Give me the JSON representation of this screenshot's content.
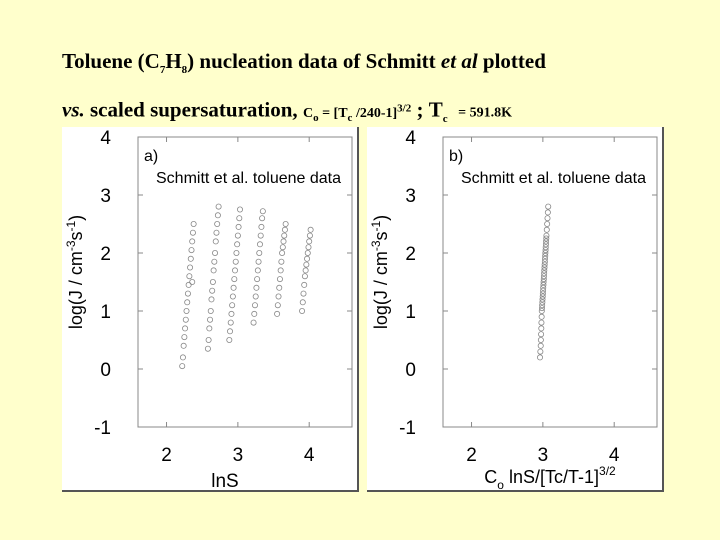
{
  "title": {
    "line1_prefix": "Toluene (C",
    "line1_sub1": "7",
    "line1_mid": "H",
    "line1_sub2": "8",
    "line1_after": ") nucleation data of Schmitt",
    "line1_italic": "et al",
    "line1_suffix": "plotted",
    "line2_italic": "vs.",
    "line2_main": "scaled supersaturation,",
    "c0": "C",
    "c0_sub": "o",
    "c0_eq": "= [T",
    "c0_tc_sub": "c",
    "c0_rest": "/240-1]",
    "c0_exp": "3/2",
    "sep": ";",
    "tc": "T",
    "tc_sub": "c",
    "tc_val": "= 591.8K"
  },
  "chart_data": [
    {
      "type": "scatter",
      "panel_label": "a)",
      "title": "Schmitt et al. toluene data",
      "xlabel": "lnS",
      "ylabel_main": "log(J / cm",
      "ylabel_sup1": "-3",
      "ylabel_mid": "s",
      "ylabel_sup2": "-1",
      "ylabel_end": ")",
      "xlim": [
        1.6,
        4.6
      ],
      "ylim": [
        -1,
        4
      ],
      "xticks": [
        "2",
        "3",
        "4"
      ],
      "xtick_values": [
        2,
        3,
        4
      ],
      "yticks": [
        "-1",
        "0",
        "1",
        "2",
        "3",
        "4"
      ],
      "ytick_values": [
        -1,
        0,
        1,
        2,
        3,
        4
      ],
      "marker": "open-circle",
      "color": "#888888",
      "series": [
        {
          "x": [
            2.22,
            2.23,
            2.24,
            2.25,
            2.26,
            2.27,
            2.28,
            2.29,
            2.3,
            2.31,
            2.32,
            2.33,
            2.34,
            2.35,
            2.36,
            2.36,
            2.37,
            2.38
          ],
          "y": [
            0.05,
            0.2,
            0.4,
            0.55,
            0.7,
            0.85,
            1.0,
            1.15,
            1.3,
            1.45,
            1.6,
            1.75,
            1.9,
            2.05,
            2.2,
            1.5,
            2.35,
            2.5
          ]
        },
        {
          "x": [
            2.58,
            2.59,
            2.6,
            2.61,
            2.62,
            2.63,
            2.64,
            2.65,
            2.66,
            2.67,
            2.68,
            2.69,
            2.7,
            2.71,
            2.72,
            2.73
          ],
          "y": [
            0.35,
            0.5,
            0.7,
            0.85,
            1.0,
            1.2,
            1.35,
            1.5,
            1.7,
            1.85,
            2.0,
            2.2,
            2.35,
            2.5,
            2.65,
            2.8
          ]
        },
        {
          "x": [
            2.88,
            2.89,
            2.9,
            2.91,
            2.92,
            2.93,
            2.94,
            2.95,
            2.96,
            2.97,
            2.98,
            2.99,
            3.0,
            3.01,
            3.02,
            3.03
          ],
          "y": [
            0.5,
            0.65,
            0.8,
            0.95,
            1.1,
            1.25,
            1.4,
            1.55,
            1.7,
            1.85,
            2.0,
            2.15,
            2.3,
            2.45,
            2.6,
            2.75
          ]
        },
        {
          "x": [
            3.22,
            3.23,
            3.24,
            3.25,
            3.26,
            3.27,
            3.28,
            3.29,
            3.3,
            3.31,
            3.32,
            3.33,
            3.34,
            3.35
          ],
          "y": [
            0.8,
            0.95,
            1.1,
            1.25,
            1.4,
            1.55,
            1.7,
            1.85,
            2.0,
            2.15,
            2.3,
            2.45,
            2.6,
            2.72
          ]
        },
        {
          "x": [
            3.55,
            3.56,
            3.57,
            3.58,
            3.59,
            3.6,
            3.61,
            3.62,
            3.63,
            3.64,
            3.65,
            3.66,
            3.67
          ],
          "y": [
            0.95,
            1.1,
            1.25,
            1.4,
            1.55,
            1.7,
            1.85,
            2.0,
            2.1,
            2.2,
            2.3,
            2.4,
            2.5
          ]
        },
        {
          "x": [
            3.9,
            3.91,
            3.92,
            3.93,
            3.94,
            3.95,
            3.96,
            3.97,
            3.98,
            3.99,
            4.0,
            4.01,
            4.02
          ],
          "y": [
            1.0,
            1.15,
            1.3,
            1.45,
            1.6,
            1.7,
            1.8,
            1.9,
            2.0,
            2.1,
            2.2,
            2.3,
            2.4
          ]
        }
      ]
    },
    {
      "type": "scatter",
      "panel_label": "b)",
      "title": "Schmitt et al. toluene data",
      "xlabel_main": "C",
      "xlabel_sub": "o",
      "xlabel_rest": "lnS/[Tc/T-1]",
      "xlabel_sup": "3/2",
      "ylabel_main": "log(J / cm",
      "ylabel_sup1": "-3",
      "ylabel_mid": "s",
      "ylabel_sup2": "-1",
      "ylabel_end": ")",
      "xlim": [
        1.6,
        4.6
      ],
      "ylim": [
        -1,
        4
      ],
      "xticks": [
        "2",
        "3",
        "4"
      ],
      "xtick_values": [
        2,
        3,
        4
      ],
      "yticks": [
        "-1",
        "0",
        "1",
        "2",
        "3",
        "4"
      ],
      "ytick_values": [
        -1,
        0,
        1,
        2,
        3,
        4
      ],
      "marker": "open-circle",
      "color": "#888888",
      "series": [
        {
          "x": [
            2.96,
            2.965,
            2.97,
            2.972,
            2.975,
            2.978,
            2.98,
            2.983,
            2.985,
            2.988,
            2.99,
            2.993,
            2.995,
            2.998,
            3.0,
            3.003,
            3.005,
            3.008,
            3.01,
            3.013,
            3.015,
            3.018,
            3.02,
            3.023,
            3.025,
            3.028,
            3.03,
            3.033,
            3.035,
            3.038,
            3.04,
            3.043,
            3.045,
            3.048,
            3.05,
            3.055,
            3.06,
            3.065,
            3.07,
            3.075
          ],
          "y": [
            0.2,
            0.3,
            0.4,
            0.5,
            0.6,
            0.7,
            0.8,
            0.9,
            1.0,
            1.05,
            1.1,
            1.15,
            1.2,
            1.25,
            1.3,
            1.35,
            1.4,
            1.45,
            1.5,
            1.55,
            1.6,
            1.65,
            1.7,
            1.75,
            1.8,
            1.85,
            1.9,
            1.95,
            2.0,
            2.05,
            2.1,
            2.15,
            2.2,
            2.25,
            2.3,
            2.4,
            2.5,
            2.6,
            2.7,
            2.8
          ]
        }
      ]
    }
  ]
}
